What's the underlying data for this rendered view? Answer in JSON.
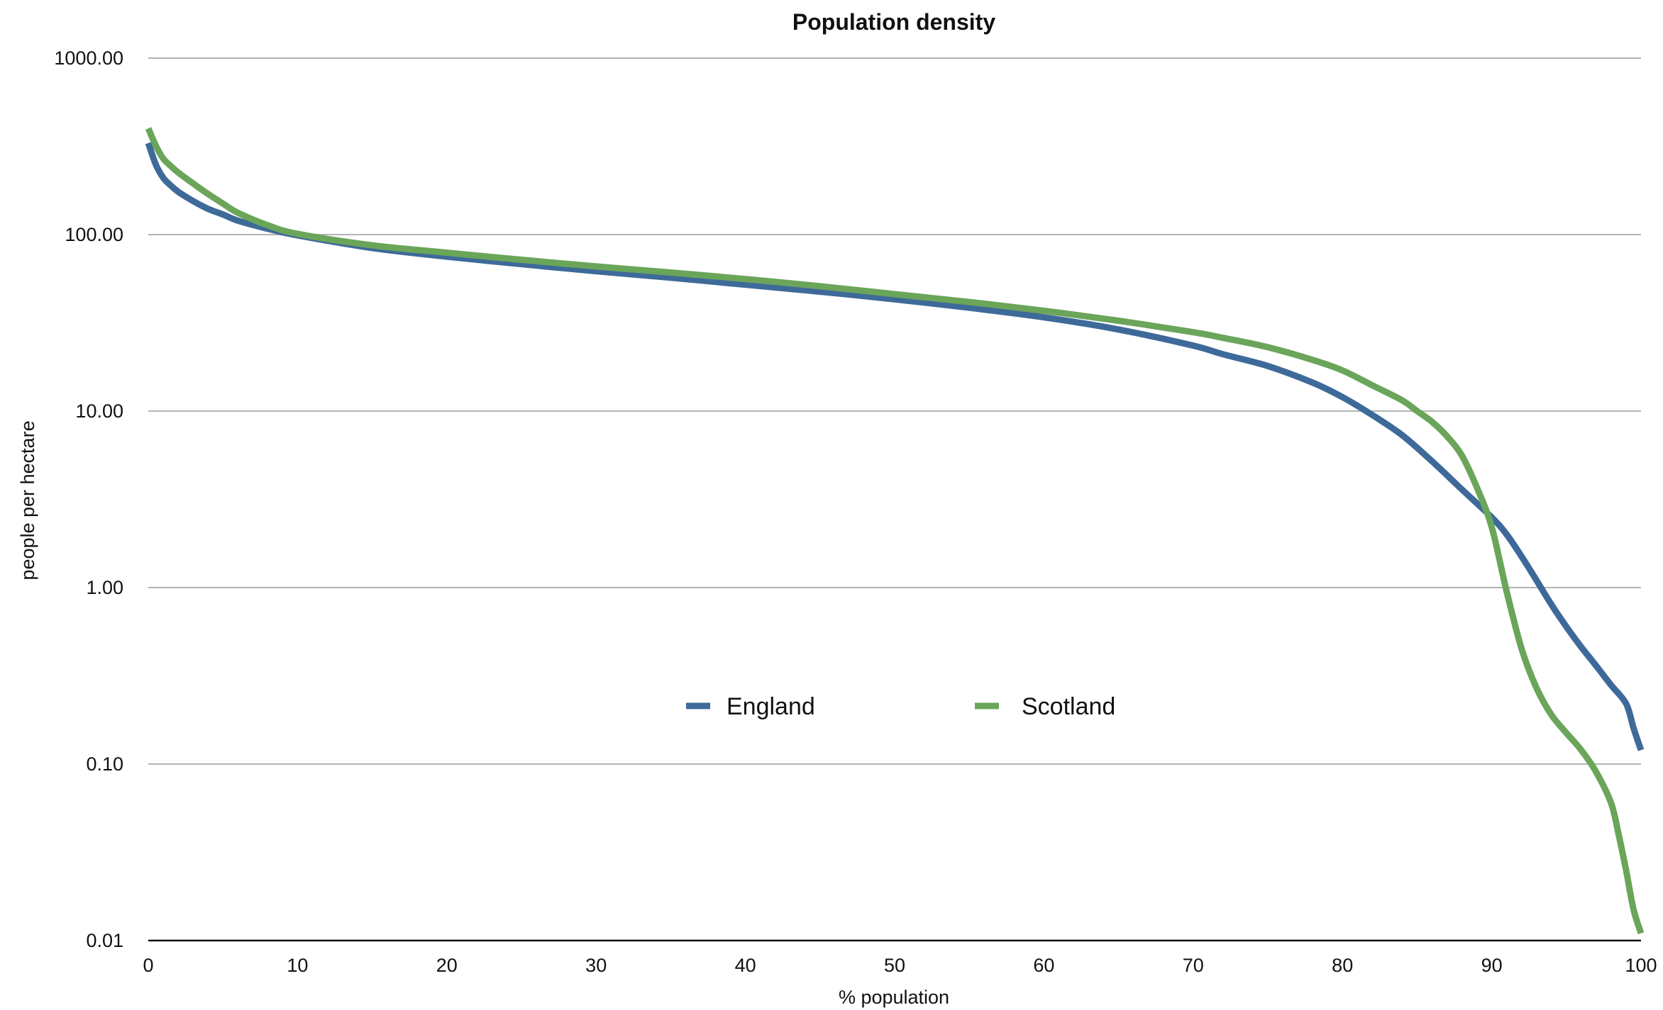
{
  "chart_data": {
    "type": "line",
    "title": "Population density",
    "xlabel": "% population",
    "ylabel": "people per hectare",
    "x_ticks": [
      "0",
      "10",
      "20",
      "30",
      "40",
      "50",
      "60",
      "70",
      "80",
      "90",
      "100"
    ],
    "y_ticks": [
      "1000.00",
      "100.00",
      "10.00",
      "1.00",
      "0.10",
      "0.01"
    ],
    "xlim": [
      0,
      100
    ],
    "ylim": [
      0.01,
      1000
    ],
    "y_scale": "log",
    "grid": true,
    "legend": "center",
    "series": [
      {
        "name": "England",
        "color": "#3e6a9a",
        "x": [
          0,
          0.5,
          1,
          1.5,
          2,
          3,
          4,
          5,
          6,
          8,
          10,
          15,
          20,
          25,
          30,
          35,
          40,
          45,
          50,
          55,
          60,
          65,
          70,
          72,
          75,
          78,
          80,
          82,
          84,
          86,
          88,
          90,
          91,
          92,
          93,
          94,
          95,
          96,
          97,
          98,
          99,
          99.5,
          100
        ],
        "values": [
          330,
          250,
          210,
          190,
          175,
          155,
          140,
          130,
          120,
          108,
          99,
          84,
          75,
          68,
          62,
          57,
          52,
          47.5,
          43,
          38.5,
          34,
          29,
          23.5,
          21,
          18,
          14.5,
          12,
          9.5,
          7.3,
          5.2,
          3.6,
          2.5,
          2.0,
          1.5,
          1.1,
          0.8,
          0.6,
          0.46,
          0.36,
          0.28,
          0.22,
          0.16,
          0.12
        ]
      },
      {
        "name": "Scotland",
        "color": "#6aa55a",
        "x": [
          0,
          0.5,
          1,
          1.5,
          2,
          3,
          4,
          5,
          6,
          8,
          10,
          15,
          20,
          25,
          30,
          35,
          40,
          45,
          50,
          55,
          60,
          65,
          70,
          72,
          75,
          78,
          80,
          82,
          84,
          85,
          86,
          87,
          88,
          89,
          90,
          91,
          92,
          93,
          94,
          95,
          96,
          97,
          98,
          98.5,
          99,
          99.5,
          100
        ],
        "values": [
          400,
          320,
          270,
          245,
          225,
          195,
          170,
          150,
          133,
          113,
          101,
          87,
          79,
          72,
          66,
          61,
          56,
          51,
          46,
          41.5,
          37,
          32.5,
          28,
          26,
          23,
          19.5,
          17,
          14,
          11.5,
          10,
          8.7,
          7.2,
          5.6,
          3.7,
          2.2,
          0.95,
          0.45,
          0.27,
          0.19,
          0.15,
          0.12,
          0.09,
          0.06,
          0.04,
          0.025,
          0.015,
          0.011
        ]
      }
    ]
  }
}
